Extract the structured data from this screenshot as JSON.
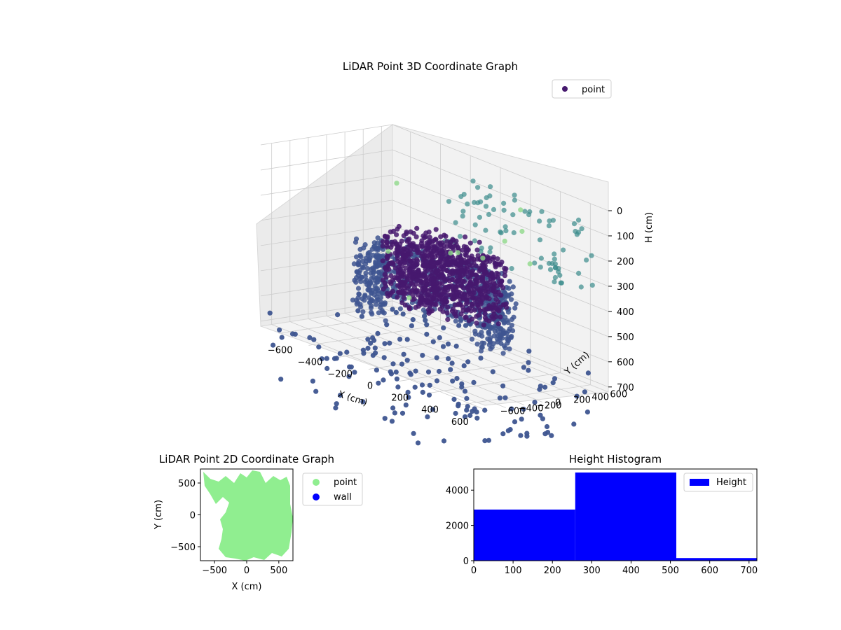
{
  "chart_data": [
    {
      "type": "scatter",
      "title": "LiDAR Point 3D Coordinate Graph",
      "xlabel": "X (cm)",
      "ylabel": "Y (cm)",
      "zlabel": "H (cm)",
      "xlim": [
        -720,
        720
      ],
      "ylim": [
        -720,
        720
      ],
      "zlim": [
        720,
        0
      ],
      "x_ticks": [
        "−600",
        "−400",
        "−200",
        "0",
        "200",
        "400",
        "600"
      ],
      "y_ticks": [
        "−600",
        "−400",
        "−200",
        "0",
        "200",
        "400",
        "600"
      ],
      "z_ticks": [
        "0",
        "100",
        "200",
        "300",
        "400",
        "500",
        "600",
        "700"
      ],
      "legend": [
        "point"
      ],
      "legend_position": "top-right",
      "colormap": "viridis",
      "grid": true,
      "colors": {
        "dense": "#46196e",
        "mid": "#3e5590",
        "edge": "#3a8b8c",
        "light": "#8fd88a"
      }
    },
    {
      "type": "scatter",
      "title": "LiDAR Point 2D Coordinate Graph",
      "xlabel": "X (cm)",
      "ylabel": "Y (cm)",
      "xlim": [
        -720,
        720
      ],
      "ylim": [
        -720,
        720
      ],
      "x_ticks": [
        "−500",
        "0",
        "500"
      ],
      "y_ticks": [
        "−500",
        "0",
        "500"
      ],
      "series": [
        {
          "name": "point",
          "color": "#90ee90"
        },
        {
          "name": "wall",
          "color": "#0000ff"
        }
      ],
      "legend_position": "right-outside"
    },
    {
      "type": "bar",
      "title": "Height Histogram",
      "xlim": [
        0,
        720
      ],
      "ylim": [
        0,
        5200
      ],
      "x_ticks": [
        "0",
        "100",
        "200",
        "300",
        "400",
        "500",
        "600",
        "700"
      ],
      "y_ticks": [
        "0",
        "2000",
        "4000"
      ],
      "bins": [
        {
          "start": 0,
          "end": 258,
          "count": 2900
        },
        {
          "start": 258,
          "end": 515,
          "count": 5000
        },
        {
          "start": 515,
          "end": 720,
          "count": 150
        }
      ],
      "series": [
        {
          "name": "Height",
          "color": "#0000ff"
        }
      ],
      "legend_position": "top-right"
    }
  ]
}
